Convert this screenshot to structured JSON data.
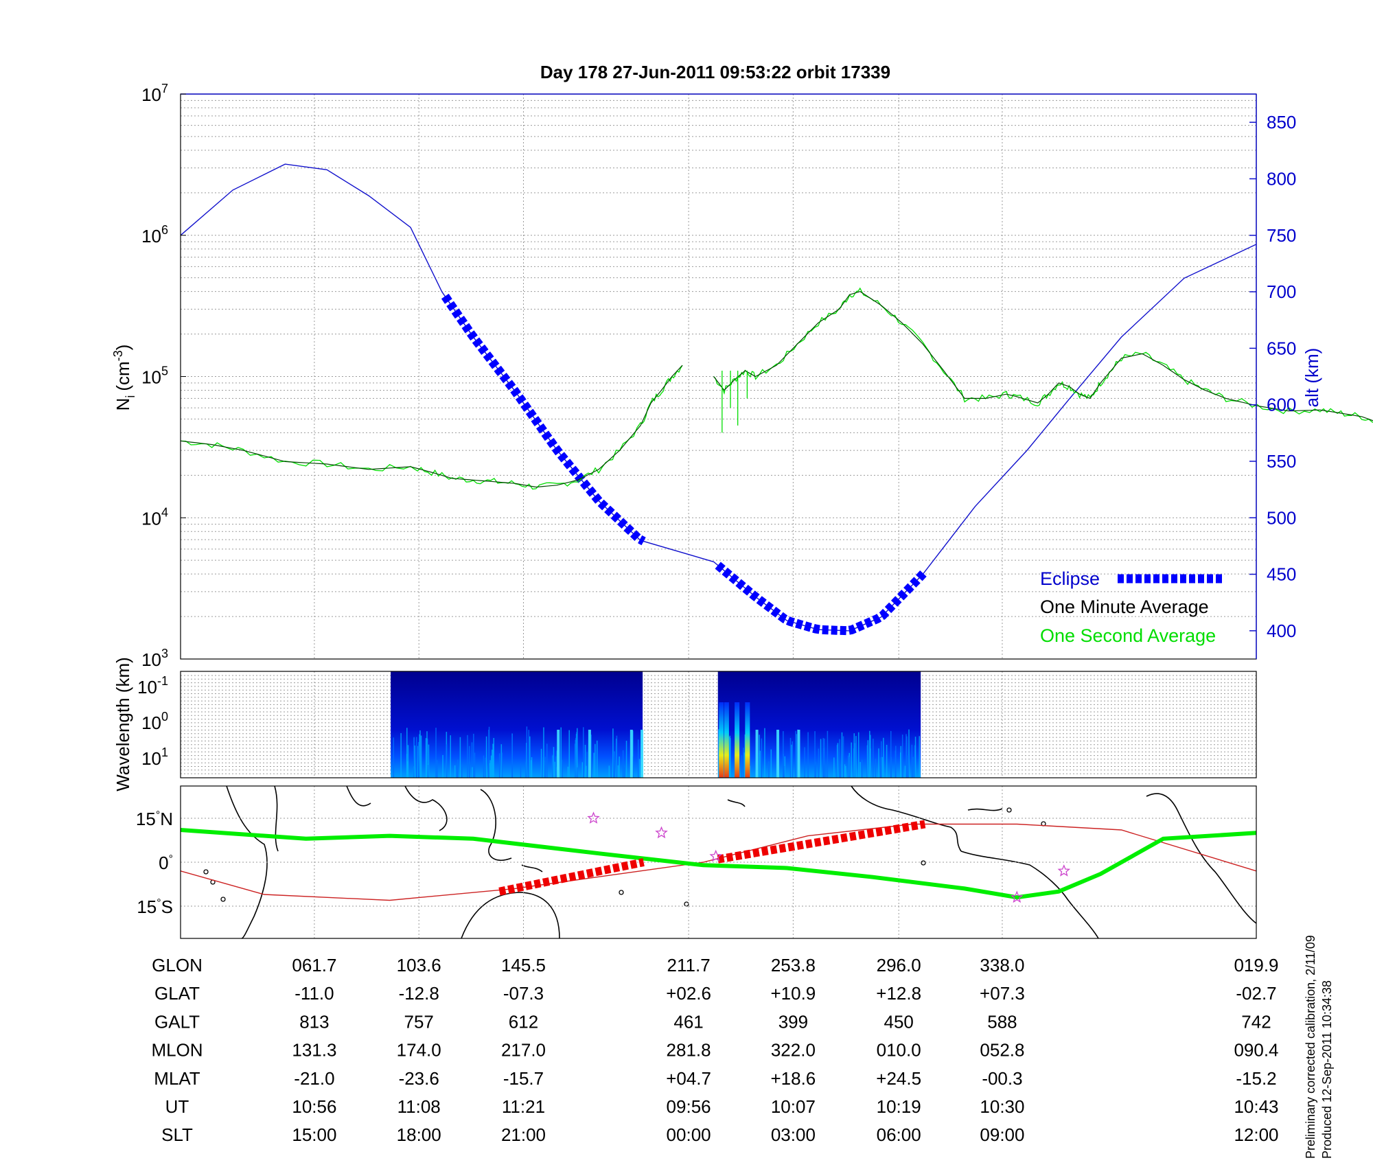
{
  "title": "Day 178  27-Jun-2011 09:53:22   orbit 17339",
  "colors": {
    "altitude": "#1010cc",
    "eclipse": "#0000ff",
    "one_minute": "#004400",
    "one_second": "#00dd00",
    "track": "#00ee00",
    "magnetic_equator": "#cc2222",
    "eclipse_track": "#ee0000",
    "stars": "#cc44cc"
  },
  "chart_data": [
    {
      "type": "line",
      "title": "Day 178  27-Jun-2011 09:53:22   orbit 17339",
      "ylabel": "N_i (cm^-3)",
      "ylabel_parts": {
        "base": "N",
        "sub": "i",
        "unit_pre": "(cm",
        "unit_exp": "-3",
        "unit_post": ")"
      },
      "y_scale": "log",
      "ylim": [
        1000,
        10000000
      ],
      "yticks": [
        {
          "base": "10",
          "exp": "3",
          "v": 1000
        },
        {
          "base": "10",
          "exp": "4",
          "v": 10000
        },
        {
          "base": "10",
          "exp": "5",
          "v": 100000
        },
        {
          "base": "10",
          "exp": "6",
          "v": 1000000
        },
        {
          "base": "10",
          "exp": "7",
          "v": 10000000
        }
      ],
      "y2label": "alt (km)",
      "y2lim": [
        375,
        875
      ],
      "y2ticks": [
        400,
        450,
        500,
        550,
        600,
        650,
        700,
        750,
        800,
        850
      ],
      "x_units": "minutes after 09:53:22 UT",
      "xlim": [
        0,
        102.9
      ],
      "x_gridlines": [
        12.8,
        22.8,
        32.8,
        48.6,
        58.6,
        68.7,
        78.6,
        102.9
      ],
      "grid": true,
      "legend_position": "bottom-right",
      "series": [
        {
          "name": "Eclipse",
          "style": "dashed-thick",
          "data_gap_sections": [
            [
              25.3,
              44.3
            ],
            [
              51.4,
              71.1
            ]
          ]
        },
        {
          "name": "One Minute Average",
          "data": [
            [
              0,
              35000
            ],
            [
              3,
              33000
            ],
            [
              6,
              30000
            ],
            [
              10,
              25000
            ],
            [
              14,
              24000
            ],
            [
              18,
              22000
            ],
            [
              22,
              23000
            ],
            [
              24,
              21000
            ],
            [
              26,
              19000
            ],
            [
              28,
              18500
            ],
            [
              30,
              18000
            ],
            [
              32,
              17500
            ],
            [
              34,
              16500
            ],
            [
              36,
              17000
            ],
            [
              38,
              18500
            ],
            [
              40,
              22000
            ],
            [
              42,
              30000
            ],
            [
              44,
              45000
            ],
            [
              45,
              65000
            ],
            [
              46,
              80000
            ],
            [
              47,
              100000
            ],
            [
              48,
              120000
            ],
            null,
            [
              51,
              100000
            ],
            [
              52,
              80000
            ],
            [
              53,
              95000
            ],
            [
              54,
              110000
            ],
            [
              55,
              100000
            ],
            [
              57,
              120000
            ],
            [
              59,
              170000
            ],
            [
              61,
              240000
            ],
            [
              63,
              300000
            ],
            [
              64,
              380000
            ],
            [
              65,
              400000
            ],
            [
              67,
              320000
            ],
            [
              69,
              240000
            ],
            [
              71,
              170000
            ],
            [
              73,
              110000
            ],
            [
              75,
              70000
            ],
            [
              77,
              70000
            ],
            [
              79,
              75000
            ],
            [
              80,
              72000
            ],
            [
              82,
              65000
            ],
            [
              83,
              75000
            ],
            [
              84,
              90000
            ],
            [
              85,
              85000
            ],
            [
              86,
              75000
            ],
            [
              87,
              70000
            ],
            [
              88,
              90000
            ],
            [
              89,
              110000
            ],
            [
              90,
              135000
            ],
            [
              92,
              145000
            ],
            [
              94,
              120000
            ],
            [
              96,
              95000
            ],
            [
              98,
              80000
            ],
            [
              100,
              70000
            ],
            [
              103,
              62000
            ],
            [
              106,
              57000
            ],
            [
              109,
              58000
            ],
            [
              111,
              55000
            ],
            [
              113,
              52000
            ],
            [
              115,
              46000
            ],
            [
              117,
              43000
            ],
            [
              119,
              40000
            ],
            [
              121,
              37000
            ],
            [
              123,
              35000
            ]
          ]
        },
        {
          "name": "One Second Average",
          "note": "noisy trace overlapping one-minute average; sharp dips near 52-54 min"
        },
        {
          "name": "altitude",
          "data": [
            [
              0,
              750
            ],
            [
              5,
              790
            ],
            [
              10,
              813
            ],
            [
              14,
              808
            ],
            [
              18,
              785
            ],
            [
              22,
              757
            ],
            [
              25,
              700
            ],
            [
              28,
              660
            ],
            [
              32,
              612
            ],
            [
              36,
              560
            ],
            [
              40,
              515
            ],
            [
              44,
              480
            ],
            [
              51,
              461
            ],
            [
              55,
              430
            ],
            [
              58,
              409
            ],
            [
              61,
              401
            ],
            [
              64,
              400
            ],
            [
              67,
              412
            ],
            [
              71,
              450
            ],
            [
              76,
              510
            ],
            [
              81,
              560
            ],
            [
              85,
              605
            ],
            [
              90,
              660
            ],
            [
              96,
              712
            ],
            [
              102.9,
              742
            ]
          ]
        }
      ]
    },
    {
      "type": "heatmap",
      "ylabel": "Wavelength (km)",
      "yticks": [
        {
          "base": "10",
          "exp": "-1"
        },
        {
          "base": "10",
          "exp": "0"
        },
        {
          "base": "10",
          "exp": "1"
        }
      ],
      "colormap": "jet",
      "segments": [
        {
          "x_range_min": [
            20.1,
            44.2
          ],
          "bright_bands_min": [
            36,
            39,
            43,
            44
          ]
        },
        {
          "x_range_min": [
            51.4,
            70.8
          ],
          "bright_bands_min": [
            51.5,
            52,
            53,
            54,
            55,
            57,
            59
          ]
        }
      ]
    },
    {
      "type": "map",
      "ylabels": [
        {
          "deg": "15",
          "hemi": "N",
          "v": 15
        },
        {
          "deg": "0",
          "hemi": "",
          "v": 0
        },
        {
          "deg": "15",
          "hemi": "S",
          "v": -15
        }
      ],
      "lat_range": [
        -26,
        26
      ],
      "series": [
        {
          "name": "ground track",
          "points": [
            [
              0,
              11
            ],
            [
              12,
              8
            ],
            [
              20,
              9
            ],
            [
              28,
              8
            ],
            [
              40,
              3
            ],
            [
              50,
              -1
            ],
            [
              58,
              -2
            ],
            [
              66,
              -5
            ],
            [
              75,
              -9
            ],
            [
              80,
              -12
            ],
            [
              84,
              -10
            ],
            [
              88,
              -4
            ],
            [
              94,
              8
            ],
            [
              102.9,
              10
            ]
          ]
        },
        {
          "name": "magnetic equator",
          "points": [
            [
              0,
              -3
            ],
            [
              8,
              -11
            ],
            [
              20,
              -13
            ],
            [
              32,
              -9
            ],
            [
              40,
              -5
            ],
            [
              50,
              0
            ],
            [
              60,
              9
            ],
            [
              70,
              13
            ],
            [
              80,
              13
            ],
            [
              90,
              11
            ],
            [
              102.9,
              -3
            ]
          ]
        },
        {
          "name": "eclipse track",
          "segments": [
            [
              [
                30.5,
                -10
              ],
              [
                44.3,
                0
              ]
            ],
            [
              [
                51.4,
                1
              ],
              [
                71.2,
                13
              ]
            ]
          ]
        },
        {
          "name": "markers",
          "points": [
            [
              39.5,
              15
            ],
            [
              46,
              10
            ],
            [
              51.2,
              2
            ],
            [
              80,
              -12
            ],
            [
              84.5,
              -3
            ]
          ]
        }
      ]
    }
  ],
  "table": {
    "row_labels": [
      "GLON",
      "GLAT",
      "GALT",
      "MLON",
      "MLAT",
      "UT",
      "SLT"
    ],
    "columns": [
      [
        "061.7",
        "-11.0",
        "813",
        "131.3",
        "-21.0",
        "10:56",
        "15:00"
      ],
      [
        "103.6",
        "-12.8",
        "757",
        "174.0",
        "-23.6",
        "11:08",
        "18:00"
      ],
      [
        "145.5",
        "-07.3",
        "612",
        "217.0",
        "-15.7",
        "11:21",
        "21:00"
      ],
      [
        "211.7",
        "+02.6",
        "461",
        "281.8",
        "+04.7",
        "09:56",
        "00:00"
      ],
      [
        "253.8",
        "+10.9",
        "399",
        "322.0",
        "+18.6",
        "10:07",
        "03:00"
      ],
      [
        "296.0",
        "+12.8",
        "450",
        "010.0",
        "+24.5",
        "10:19",
        "06:00"
      ],
      [
        "338.0",
        "+07.3",
        "588",
        "052.8",
        "-00.3",
        "10:30",
        "09:00"
      ],
      [
        "019.9",
        "-02.7",
        "742",
        "090.4",
        "-15.2",
        "10:43",
        "12:00"
      ]
    ]
  },
  "legend": {
    "eclipse": "Eclipse",
    "one_minute": "One Minute Average",
    "one_second": "One Second Average"
  },
  "side_note": {
    "line1": "Preliminary corrected calibration, 2/11/09",
    "line2": "Produced 12-Sep-2011 10:34:38"
  }
}
